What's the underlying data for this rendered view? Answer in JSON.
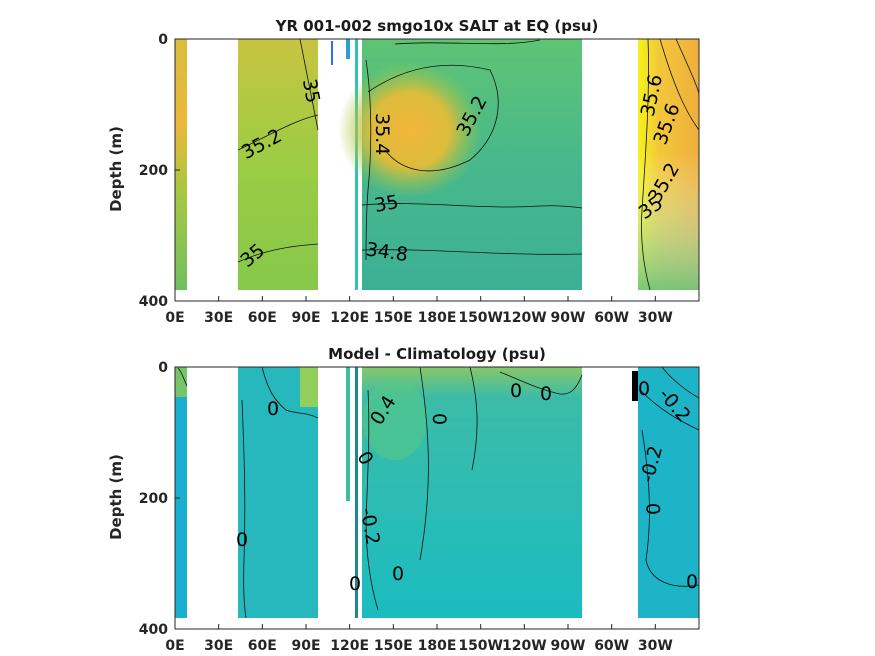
{
  "chart_data": [
    {
      "type": "heatmap",
      "title": "YR 001-002 smgo10x SALT at EQ (psu)",
      "ylabel": "Depth (m)",
      "yticks": [
        "0",
        "200",
        "400"
      ],
      "xticks": [
        "0E",
        "30E",
        "60E",
        "90E",
        "120E",
        "150E",
        "180E",
        "150W",
        "120W",
        "90W",
        "60W",
        "30W"
      ],
      "contour_labels": [
        "35",
        "35.2",
        "35",
        "35",
        "35.4",
        "35.2",
        "35",
        "34.8",
        "35.6",
        "35.6",
        "35.2",
        "35"
      ],
      "ylim": [
        0,
        400
      ],
      "colors": [
        "#4db38a",
        "#8cc843",
        "#e8b43a",
        "#f5b83a",
        "#f5f518"
      ]
    },
    {
      "type": "heatmap",
      "title": "Model - Climatology (psu)",
      "ylabel": "Depth (m)",
      "yticks": [
        "0",
        "200",
        "400"
      ],
      "xticks": [
        "0E",
        "30E",
        "60E",
        "90E",
        "120E",
        "150E",
        "180E",
        "150W",
        "120W",
        "90W",
        "60W",
        "30W"
      ],
      "contour_labels": [
        "0",
        "0",
        "0",
        "0",
        "0",
        "0.4",
        "0",
        "0",
        "-0.2",
        "0",
        "0",
        "-0.2",
        "-0.2",
        "0",
        "0"
      ],
      "ylim": [
        0,
        400
      ],
      "colors": [
        "#0fbcc4",
        "#2ab8b8",
        "#6cc48a",
        "#a8d24a",
        "#000000"
      ]
    }
  ]
}
